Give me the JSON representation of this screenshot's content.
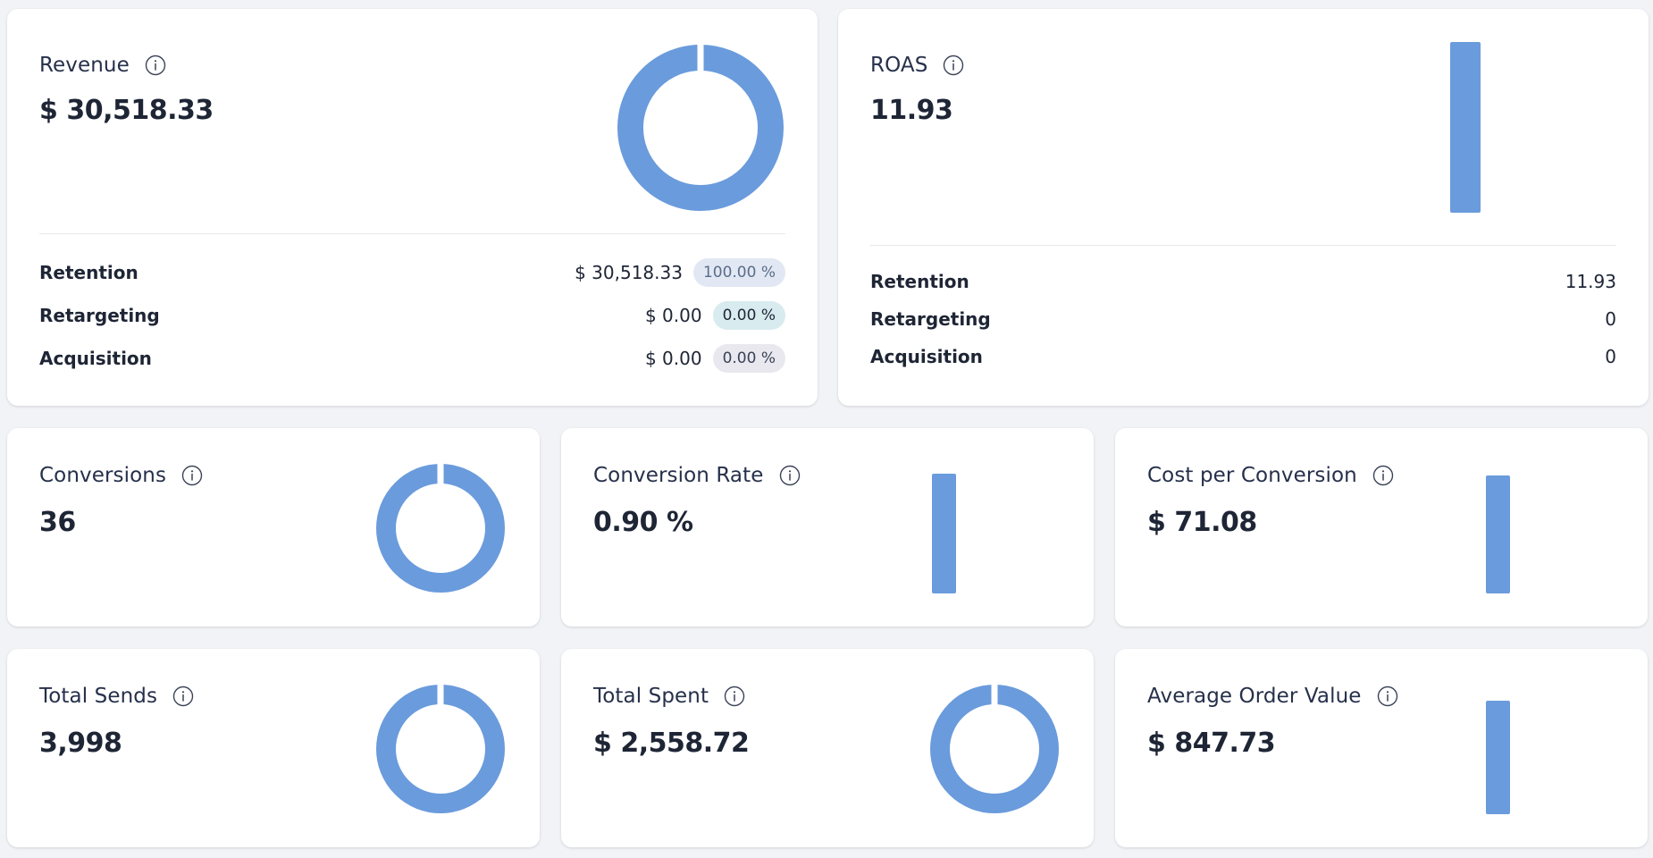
{
  "colors": {
    "accent": "#6a9bdc",
    "badge_retention_bg": "#e2e8f3",
    "badge_retention_fg": "#5a6c8a",
    "badge_retargeting_bg": "#d8ebee",
    "badge_acquisition_bg": "#e9e8ef"
  },
  "revenue": {
    "title": "Revenue",
    "value": "$ 30,518.33",
    "breakdown": [
      {
        "label": "Retention",
        "amount": "$ 30,518.33",
        "percent": "100.00 %"
      },
      {
        "label": "Retargeting",
        "amount": "$ 0.00",
        "percent": "0.00 %"
      },
      {
        "label": "Acquisition",
        "amount": "$ 0.00",
        "percent": "0.00 %"
      }
    ]
  },
  "roas": {
    "title": "ROAS",
    "value": "11.93",
    "breakdown": [
      {
        "label": "Retention",
        "amount": "11.93"
      },
      {
        "label": "Retargeting",
        "amount": "0"
      },
      {
        "label": "Acquisition",
        "amount": "0"
      }
    ]
  },
  "conversions": {
    "title": "Conversions",
    "value": "36"
  },
  "conversion_rate": {
    "title": "Conversion Rate",
    "value": "0.90 %"
  },
  "cost_per_conversion": {
    "title": "Cost per Conversion",
    "value": "$ 71.08"
  },
  "total_sends": {
    "title": "Total Sends",
    "value": "3,998"
  },
  "total_spent": {
    "title": "Total Spent",
    "value": "$ 2,558.72"
  },
  "average_order_value": {
    "title": "Average Order Value",
    "value": "$ 847.73"
  },
  "icons": {
    "info": "info-icon"
  }
}
